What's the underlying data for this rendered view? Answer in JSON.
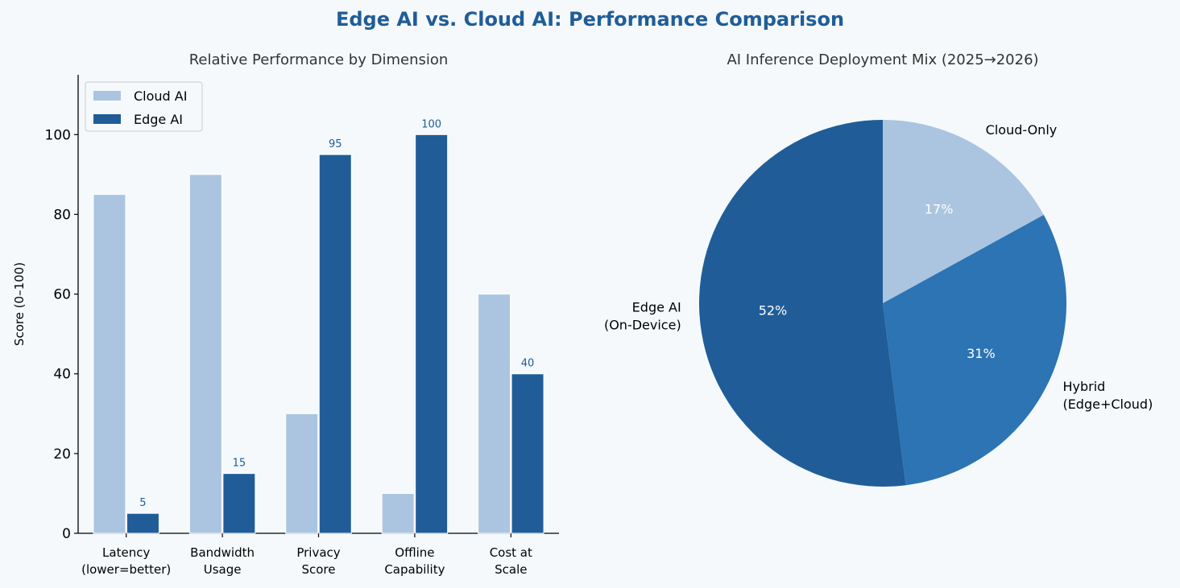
{
  "figure": {
    "title": "Edge AI vs. Cloud AI: Performance Comparison",
    "title_color": "#205d98",
    "background": "#f5f9fc"
  },
  "chart_data": [
    {
      "type": "bar",
      "title": "Relative Performance by Dimension",
      "ylabel": "Score (0–100)",
      "xlabel": "",
      "ylim": [
        0,
        115
      ],
      "yticks": [
        0,
        20,
        40,
        60,
        80,
        100
      ],
      "categories": [
        [
          "Latency",
          "(lower=better)"
        ],
        [
          "Bandwidth",
          "Usage"
        ],
        [
          "Privacy",
          "Score"
        ],
        [
          "Offline",
          "Capability"
        ],
        [
          "Cost at",
          "Scale"
        ]
      ],
      "series": [
        {
          "name": "Cloud AI",
          "values": [
            85,
            90,
            30,
            10,
            60
          ],
          "color": "#abc5e0",
          "data_labels": false
        },
        {
          "name": "Edge AI",
          "values": [
            5,
            15,
            95,
            100,
            40
          ],
          "color": "#205d98",
          "data_labels": true
        }
      ],
      "legend_position": "upper-left",
      "grid": false
    },
    {
      "type": "pie",
      "title": "AI Inference Deployment Mix (2025→2026)",
      "slices": [
        {
          "label": [
            "Cloud-Only"
          ],
          "value": 17,
          "pct_label": "17%",
          "color": "#abc5e0"
        },
        {
          "label": [
            "Hybrid",
            "(Edge+Cloud)"
          ],
          "value": 31,
          "pct_label": "31%",
          "color": "#2c74b3"
        },
        {
          "label": [
            "Edge AI",
            "(On-Device)"
          ],
          "value": 52,
          "pct_label": "52%",
          "color": "#205d98"
        }
      ],
      "start": "top",
      "direction": "clockwise"
    }
  ]
}
